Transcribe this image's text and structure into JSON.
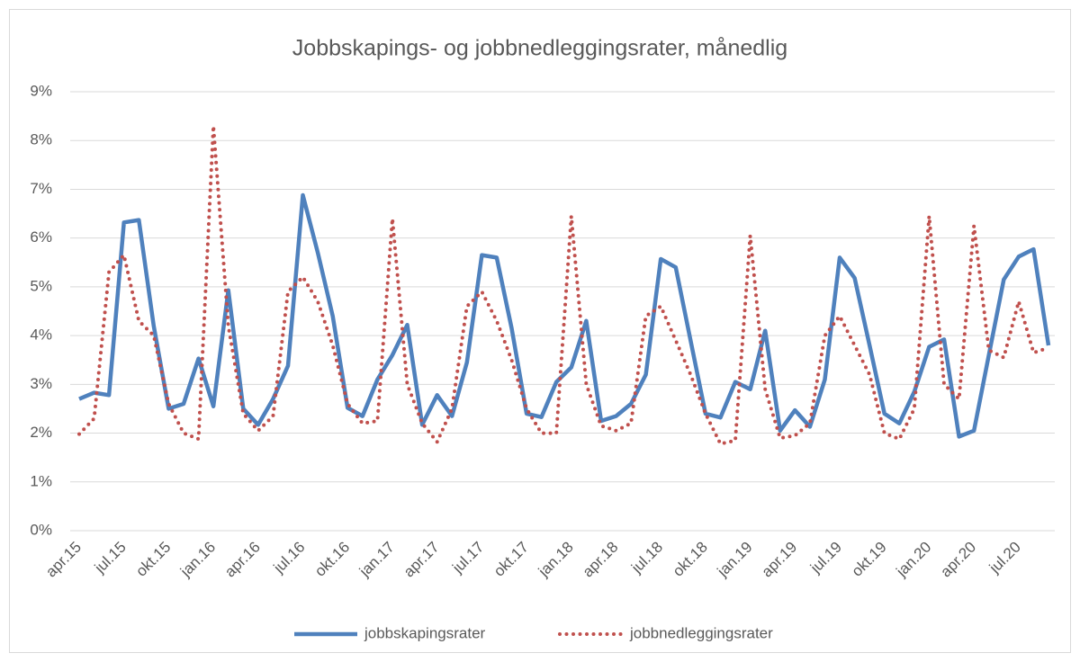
{
  "chart_data": {
    "type": "line",
    "title": "Jobbskapings- og jobbnedleggingsrater, månedlig",
    "categories": [
      "apr.15",
      null,
      null,
      "jul.15",
      null,
      null,
      "okt.15",
      null,
      null,
      "jan.16",
      null,
      null,
      "apr.16",
      null,
      null,
      "jul.16",
      null,
      null,
      "okt.16",
      null,
      null,
      "jan.17",
      null,
      null,
      "apr.17",
      null,
      null,
      "jul.17",
      null,
      null,
      "okt.17",
      null,
      null,
      "jan.18",
      null,
      null,
      "apr.18",
      null,
      null,
      "jul.18",
      null,
      null,
      "okt.18",
      null,
      null,
      "jan.19",
      null,
      null,
      "apr.19",
      null,
      null,
      "jul.19",
      null,
      null,
      "okt.19",
      null,
      null,
      "jan.20",
      null,
      null,
      "apr.20",
      null,
      null,
      "jul.20",
      null,
      null
    ],
    "series": [
      {
        "name": "jobbskapingsrater",
        "color": "#4f81bd",
        "style": "solid",
        "values": [
          2.7,
          2.83,
          2.78,
          6.32,
          6.37,
          4.2,
          2.5,
          2.6,
          3.53,
          2.55,
          4.93,
          2.5,
          2.17,
          2.7,
          3.38,
          6.88,
          5.7,
          4.4,
          2.52,
          2.35,
          3.1,
          3.6,
          4.22,
          2.17,
          2.78,
          2.35,
          3.45,
          5.65,
          5.6,
          4.15,
          2.4,
          2.33,
          3.05,
          3.35,
          4.3,
          2.25,
          2.35,
          2.6,
          3.2,
          5.57,
          5.4,
          3.9,
          2.4,
          2.32,
          3.05,
          2.9,
          4.1,
          2.05,
          2.47,
          2.13,
          3.1,
          5.6,
          5.18,
          3.8,
          2.4,
          2.2,
          2.85,
          3.77,
          3.92,
          1.93,
          2.05,
          3.6,
          5.15,
          5.62,
          5.77,
          3.8
        ]
      },
      {
        "name": "jobbnedleggingsrater",
        "color": "#c0504d",
        "style": "dotted",
        "values": [
          1.98,
          2.3,
          5.3,
          5.65,
          4.3,
          4.0,
          2.6,
          2.0,
          1.88,
          8.3,
          4.2,
          2.4,
          2.05,
          2.35,
          4.9,
          5.2,
          4.7,
          3.8,
          2.6,
          2.2,
          2.25,
          6.4,
          3.0,
          2.2,
          1.82,
          2.5,
          4.6,
          4.9,
          4.3,
          3.5,
          2.5,
          2.0,
          2.0,
          6.45,
          3.0,
          2.15,
          2.05,
          2.2,
          4.4,
          4.6,
          3.9,
          3.2,
          2.4,
          1.78,
          1.85,
          6.05,
          2.9,
          1.9,
          1.95,
          2.2,
          4.0,
          4.4,
          3.8,
          3.2,
          2.0,
          1.88,
          2.5,
          6.45,
          3.0,
          2.7,
          6.25,
          3.7,
          3.55,
          4.7,
          3.65,
          3.75
        ]
      }
    ],
    "ylim": [
      0,
      9
    ],
    "yticks": [
      {
        "value": 0,
        "label": "0%"
      },
      {
        "value": 1,
        "label": "1%"
      },
      {
        "value": 2,
        "label": "2%"
      },
      {
        "value": 3,
        "label": "3%"
      },
      {
        "value": 4,
        "label": "4%"
      },
      {
        "value": 5,
        "label": "5%"
      },
      {
        "value": 6,
        "label": "6%"
      },
      {
        "value": 7,
        "label": "7%"
      },
      {
        "value": 8,
        "label": "8%"
      },
      {
        "value": 9,
        "label": "9%"
      }
    ],
    "grid": true,
    "legend": "bottom"
  }
}
